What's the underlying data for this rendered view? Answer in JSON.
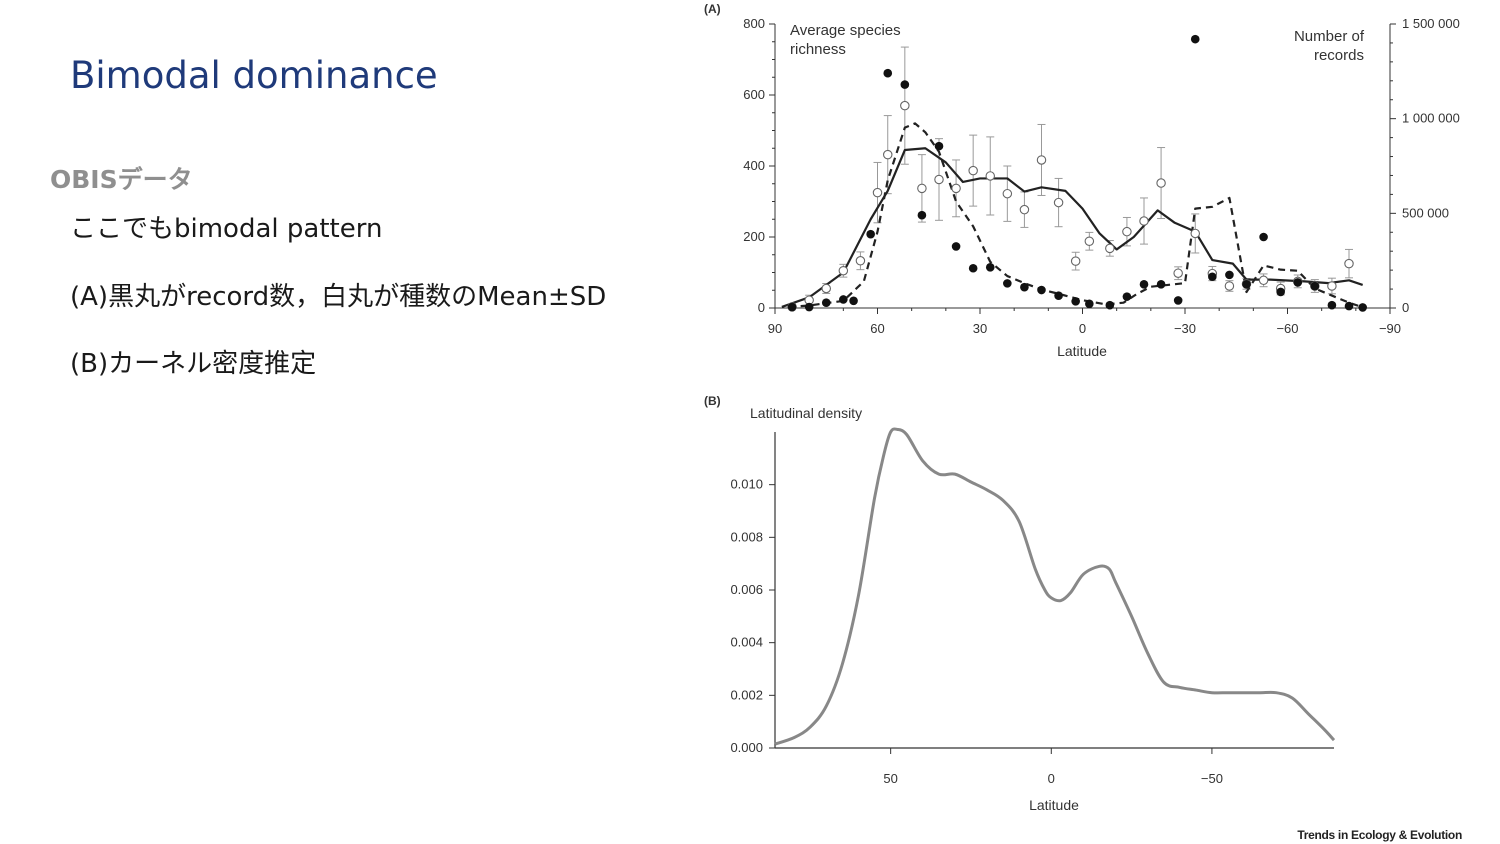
{
  "slide": {
    "title": "Bimodal dominance",
    "section": "OBISデータ",
    "bullets": [
      "ここでもbimodal pattern",
      "(A)黒丸がrecord数，白丸が種数のMean±SD",
      "(B)カーネル密度推定"
    ],
    "credit": "Trends in Ecology & Evolution",
    "colors": {
      "title": "#1f3a7a",
      "section": "#8f8f8f",
      "density_line": "#888888"
    }
  },
  "chart_data": [
    {
      "panel_label": "(A)",
      "type": "line",
      "xlabel": "Latitude",
      "xlim": [
        90,
        -90
      ],
      "x_ticks": [
        90,
        60,
        30,
        0,
        -30,
        -60,
        -90
      ],
      "x_tick_labels": [
        "90",
        "60",
        "30",
        "0",
        "−30",
        "−60",
        "−90"
      ],
      "y_left": {
        "label": "Average species richness",
        "lim": [
          0,
          800
        ],
        "ticks": [
          0,
          200,
          400,
          600,
          800
        ]
      },
      "y_right": {
        "label": "Number of records",
        "lim": [
          0,
          1500000
        ],
        "ticks": [
          0,
          500000,
          1000000,
          1500000
        ],
        "tick_labels": [
          "0",
          "500 000",
          "1 000 000",
          "1 500 000"
        ]
      },
      "series": [
        {
          "style": "open circles with SD error bars",
          "axis": "left",
          "x": [
            85,
            80,
            75,
            70,
            65,
            60,
            57,
            52,
            47,
            42,
            37,
            32,
            27,
            22,
            17,
            12,
            7,
            2,
            -2,
            -8,
            -13,
            -18,
            -23,
            -28,
            -33,
            -38,
            -43,
            -48,
            -53,
            -58,
            -63,
            -68,
            -73,
            -78
          ],
          "y": [
            3,
            22,
            55,
            105,
            133,
            325,
            432,
            570,
            337,
            362,
            337,
            387,
            372,
            322,
            277,
            417,
            297,
            132,
            188,
            168,
            215,
            245,
            352,
            98,
            210,
            97,
            62,
            68,
            78,
            55,
            75,
            62,
            62,
            125
          ],
          "sd": [
            8,
            14,
            14,
            18,
            25,
            85,
            110,
            165,
            95,
            115,
            80,
            100,
            110,
            78,
            50,
            100,
            68,
            25,
            25,
            22,
            40,
            65,
            100,
            18,
            55,
            20,
            15,
            15,
            18,
            18,
            18,
            18,
            22,
            40
          ]
        },
        {
          "style": "solid line",
          "axis": "left",
          "x": [
            88,
            80,
            70,
            62,
            57,
            52,
            46,
            40,
            35,
            30,
            22,
            17,
            12,
            5,
            0,
            -5,
            -10,
            -15,
            -22,
            -27,
            -33,
            -38,
            -44,
            -48,
            -55,
            -65,
            -72,
            -78,
            -82
          ],
          "y": [
            3,
            30,
            100,
            250,
            330,
            445,
            450,
            410,
            355,
            365,
            365,
            328,
            340,
            330,
            280,
            210,
            165,
            200,
            275,
            240,
            215,
            135,
            125,
            80,
            80,
            75,
            70,
            78,
            65
          ]
        },
        {
          "style": "dashed line",
          "axis": "left",
          "x": [
            86,
            80,
            74,
            70,
            64,
            60,
            57,
            52,
            49,
            46,
            42,
            37,
            32,
            27,
            22,
            17,
            12,
            7,
            0,
            -7,
            -12,
            -16,
            -20,
            -25,
            -30,
            -33,
            -38,
            -43,
            -48,
            -53,
            -58,
            -63,
            -68,
            -73,
            -78,
            -82
          ],
          "y": [
            3,
            7,
            15,
            20,
            75,
            215,
            360,
            508,
            520,
            495,
            440,
            300,
            230,
            130,
            90,
            70,
            52,
            40,
            22,
            10,
            15,
            40,
            60,
            65,
            70,
            280,
            285,
            310,
            45,
            120,
            108,
            105,
            55,
            35,
            15,
            2
          ]
        },
        {
          "style": "filled circles",
          "axis": "right",
          "x": [
            85,
            80,
            75,
            70,
            67,
            62,
            57,
            52,
            47,
            42,
            37,
            32,
            27,
            22,
            17,
            12,
            7,
            2,
            -2,
            -8,
            -13,
            -18,
            -23,
            -28,
            -33,
            -38,
            -43,
            -48,
            -53,
            -58,
            -63,
            -68,
            -73,
            -78,
            -82
          ],
          "y": [
            5000,
            5000,
            28000,
            45000,
            38000,
            390000,
            1240000,
            1180000,
            490000,
            855000,
            325000,
            210000,
            215000,
            130000,
            110000,
            95000,
            65000,
            35000,
            22000,
            15000,
            60000,
            125000,
            125000,
            40000,
            1420000,
            165000,
            175000,
            125000,
            375000,
            85000,
            135000,
            115000,
            15000,
            10000,
            3000
          ]
        }
      ]
    },
    {
      "panel_label": "(B)",
      "type": "line",
      "ylabel": "Latitudinal density",
      "xlabel": "Latitude",
      "xlim": [
        86,
        -88
      ],
      "ylim": [
        0,
        0.012
      ],
      "x_ticks": [
        50,
        0,
        -50
      ],
      "x_tick_labels": [
        "50",
        "0",
        "−50"
      ],
      "y_ticks": [
        0,
        0.002,
        0.004,
        0.006,
        0.008,
        0.01
      ],
      "y_tick_labels": [
        "0.000",
        "0.002",
        "0.004",
        "0.006",
        "0.008",
        "0.010"
      ],
      "series": [
        {
          "x": [
            86,
            80,
            75,
            70,
            65,
            60,
            55,
            52,
            50,
            48,
            45,
            40,
            35,
            30,
            25,
            20,
            15,
            10,
            5,
            2,
            0,
            -3,
            -6,
            -10,
            -15,
            -18,
            -20,
            -25,
            -30,
            -35,
            -40,
            -45,
            -50,
            -55,
            -60,
            -65,
            -70,
            -75,
            -80,
            -85,
            -88
          ],
          "y": [
            0.00015,
            0.0004,
            0.0008,
            0.0016,
            0.0032,
            0.0058,
            0.0095,
            0.0112,
            0.012,
            0.0121,
            0.0119,
            0.0109,
            0.0104,
            0.0104,
            0.0101,
            0.0098,
            0.0094,
            0.0086,
            0.0068,
            0.006,
            0.0057,
            0.0056,
            0.0059,
            0.0066,
            0.0069,
            0.0068,
            0.0063,
            0.005,
            0.0036,
            0.0025,
            0.0023,
            0.0022,
            0.0021,
            0.0021,
            0.0021,
            0.0021,
            0.0021,
            0.0019,
            0.0013,
            0.0007,
            0.0003
          ]
        }
      ]
    }
  ]
}
